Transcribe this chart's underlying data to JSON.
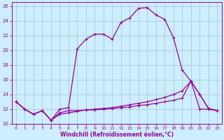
{
  "xlabel": "Windchill (Refroidissement éolien,°C)",
  "background_color": "#cceeff",
  "grid_color": "#aacccc",
  "line_color": "#990099",
  "xlim": [
    -0.5,
    23.5
  ],
  "ylim": [
    10,
    26.5
  ],
  "yticks": [
    10,
    12,
    14,
    16,
    18,
    20,
    22,
    24,
    26
  ],
  "xticks": [
    0,
    1,
    2,
    3,
    4,
    5,
    6,
    7,
    8,
    9,
    10,
    11,
    12,
    13,
    14,
    15,
    16,
    17,
    18,
    19,
    20,
    21,
    22,
    23
  ],
  "line1_x": [
    0,
    1,
    2,
    3,
    4,
    5,
    6,
    7,
    8,
    9,
    10,
    11,
    12,
    13,
    14,
    15,
    16,
    17,
    18,
    19,
    20,
    21,
    22,
    23
  ],
  "line1_y": [
    13.0,
    12.0,
    11.3,
    11.8,
    10.5,
    12.0,
    12.2,
    20.2,
    21.5,
    22.2,
    22.2,
    21.5,
    23.8,
    24.4,
    25.7,
    25.8,
    24.8,
    24.2,
    21.7,
    17.3,
    15.8,
    14.0,
    12.1,
    11.8
  ],
  "line2_x": [
    0,
    1,
    2,
    3,
    4,
    5,
    6,
    7,
    8,
    9,
    10,
    11,
    12,
    13,
    14,
    15,
    16,
    17,
    18,
    19,
    20,
    21,
    22,
    23
  ],
  "line2_y": [
    13.0,
    12.0,
    11.3,
    11.8,
    10.5,
    11.5,
    11.8,
    11.8,
    11.9,
    11.9,
    12.0,
    12.1,
    12.2,
    12.3,
    12.5,
    12.6,
    12.8,
    13.0,
    13.2,
    13.5,
    15.8,
    12.0,
    12.0,
    11.8
  ],
  "line3_x": [
    0,
    1,
    2,
    3,
    4,
    5,
    6,
    7,
    8,
    9,
    10,
    11,
    12,
    13,
    14,
    15,
    16,
    17,
    18,
    19,
    20,
    21,
    22,
    23
  ],
  "line3_y": [
    13.0,
    12.0,
    11.3,
    11.8,
    10.5,
    11.3,
    11.5,
    11.7,
    11.9,
    12.0,
    12.1,
    12.2,
    12.4,
    12.6,
    12.8,
    13.0,
    13.3,
    13.6,
    14.0,
    14.5,
    15.8,
    14.0,
    12.1,
    11.8
  ]
}
